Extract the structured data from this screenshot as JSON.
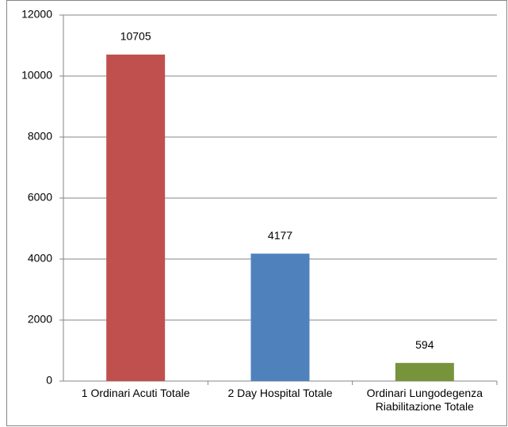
{
  "chart_data": {
    "type": "bar",
    "categories": [
      "1 Ordinari Acuti Totale",
      "2 Day Hospital Totale",
      "Ordinari Lungodegenza Riabilitazione Totale"
    ],
    "values": [
      10705,
      4177,
      594
    ],
    "colors": [
      "#c0504d",
      "#4f81bd",
      "#77933c"
    ],
    "ylim": [
      0,
      12000
    ],
    "yticks": [
      0,
      2000,
      4000,
      6000,
      8000,
      10000,
      12000
    ],
    "grid": true
  }
}
